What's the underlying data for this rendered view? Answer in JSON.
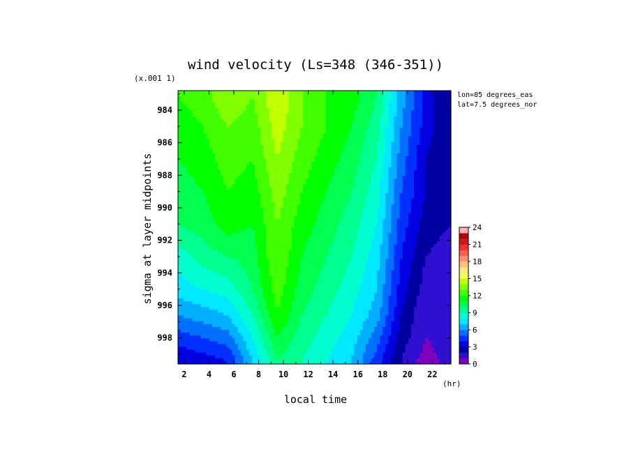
{
  "chart_data": {
    "type": "heatmap",
    "title": "wind velocity (Ls=348 (346-351))",
    "scale_note": "(x.001 1)",
    "xlabel": "local time",
    "xunit": "(hr)",
    "ylabel": "sigma at layer midpoints",
    "annotations": [
      "lon=85 degrees_eas",
      "lat=7.5 degrees_nor"
    ],
    "x_ticks": [
      "2",
      "4",
      "6",
      "8",
      "10",
      "12",
      "14",
      "16",
      "18",
      "20",
      "22"
    ],
    "y_ticks": [
      "984",
      "986",
      "988",
      "990",
      "992",
      "994",
      "996",
      "998"
    ],
    "x": [
      1.5,
      3.5,
      5.5,
      7.5,
      9.5,
      11.5,
      13.5,
      15.5,
      17.5,
      19.5,
      21.5,
      23.5
    ],
    "y": [
      983.1,
      985,
      987,
      989,
      991,
      993,
      995,
      996.6,
      998,
      999.4
    ],
    "xlim": [
      1.5,
      23.5
    ],
    "ylim": [
      982.8,
      999.6
    ],
    "y_reversed": true,
    "values": [
      [
        12,
        12.5,
        14,
        13,
        15,
        13,
        12,
        11.5,
        10,
        6.5,
        3.5,
        2
      ],
      [
        11.5,
        12,
        13,
        12.5,
        14.5,
        13,
        12,
        11,
        9.5,
        6,
        3.5,
        2
      ],
      [
        11,
        11.5,
        12.5,
        12,
        14,
        12.5,
        11.5,
        10.5,
        9,
        5.5,
        3,
        2
      ],
      [
        10.5,
        11,
        12,
        11.5,
        13.5,
        12,
        11,
        10,
        8.5,
        5,
        3,
        2
      ],
      [
        10,
        10.5,
        11.5,
        11,
        13,
        11.5,
        10.5,
        9.5,
        8,
        4.5,
        2.5,
        2
      ],
      [
        8.5,
        9.5,
        10,
        10.5,
        13,
        11,
        10,
        9,
        7.5,
        4,
        2,
        1.5
      ],
      [
        7.5,
        8,
        8.5,
        10,
        12.5,
        10.5,
        9.5,
        8.5,
        7,
        3.5,
        1.5,
        1.5
      ],
      [
        6,
        6.5,
        7,
        9,
        12,
        10,
        9,
        8,
        6.5,
        3,
        1,
        1.5
      ],
      [
        4.5,
        5,
        5.5,
        8,
        11,
        9.5,
        8.5,
        7.5,
        5.5,
        2.5,
        1,
        1.5
      ],
      [
        3,
        3.5,
        4,
        7,
        10,
        9,
        8,
        7,
        4.5,
        2,
        0.5,
        1.5
      ]
    ],
    "colorbar": {
      "min": 0,
      "max": 24,
      "step": 1,
      "tick_labels": [
        "0",
        "3",
        "6",
        "9",
        "12",
        "15",
        "18",
        "21",
        "24"
      ],
      "colors": [
        "#8000c0",
        "#3010d0",
        "#0000a0",
        "#0000e0",
        "#0030ff",
        "#0070ff",
        "#00b0ff",
        "#00e8ff",
        "#00ffd0",
        "#00ff90",
        "#00ff50",
        "#00ff00",
        "#40ff00",
        "#80ff00",
        "#c0ff00",
        "#f0ff60",
        "#ffe880",
        "#ffc080",
        "#ff9070",
        "#ff6050",
        "#f03030",
        "#d01818",
        "#b00010",
        "#ffb0b0"
      ]
    }
  }
}
